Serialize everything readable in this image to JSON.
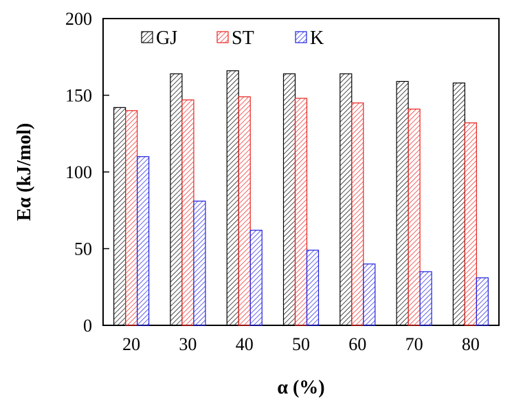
{
  "chart_data": {
    "type": "bar",
    "title": "",
    "xlabel": "α (%)",
    "ylabel": "Eα (kJ/mol)",
    "categories": [
      "20",
      "30",
      "40",
      "50",
      "60",
      "70",
      "80"
    ],
    "ylim": [
      0,
      200
    ],
    "yticks": [
      "0",
      "50",
      "100",
      "150",
      "200"
    ],
    "grid": false,
    "legend_position": "top",
    "series": [
      {
        "name": "GJ",
        "color": "#000000",
        "values": [
          142,
          164,
          166,
          164,
          164,
          159,
          158
        ]
      },
      {
        "name": "ST",
        "color": "#e8231f",
        "values": [
          140,
          147,
          149,
          148,
          145,
          141,
          132
        ]
      },
      {
        "name": "K",
        "color": "#1f1fe0",
        "values": [
          110,
          81,
          62,
          49,
          40,
          35,
          31
        ]
      }
    ]
  }
}
